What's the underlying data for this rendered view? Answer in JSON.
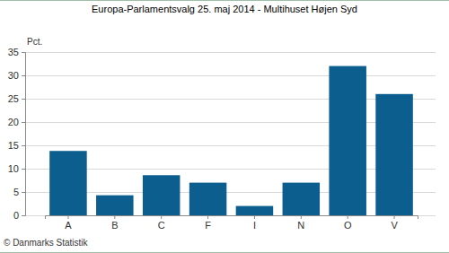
{
  "chart_data": {
    "type": "bar",
    "title": "Europa-Parlamentsvalg 25. maj 2014 - Multihuset Højen Syd",
    "y_label": "Pct.",
    "source": "© Danmarks Statistik",
    "categories": [
      "A",
      "B",
      "C",
      "F",
      "I",
      "N",
      "O",
      "V"
    ],
    "values": [
      13.8,
      4.3,
      8.6,
      7.0,
      2.0,
      7.0,
      32.0,
      26.0
    ],
    "color": "#0b5e8e",
    "ylim": [
      0,
      35
    ],
    "yticks": [
      0,
      5,
      10,
      15,
      20,
      25,
      30,
      35
    ],
    "grid": true
  }
}
